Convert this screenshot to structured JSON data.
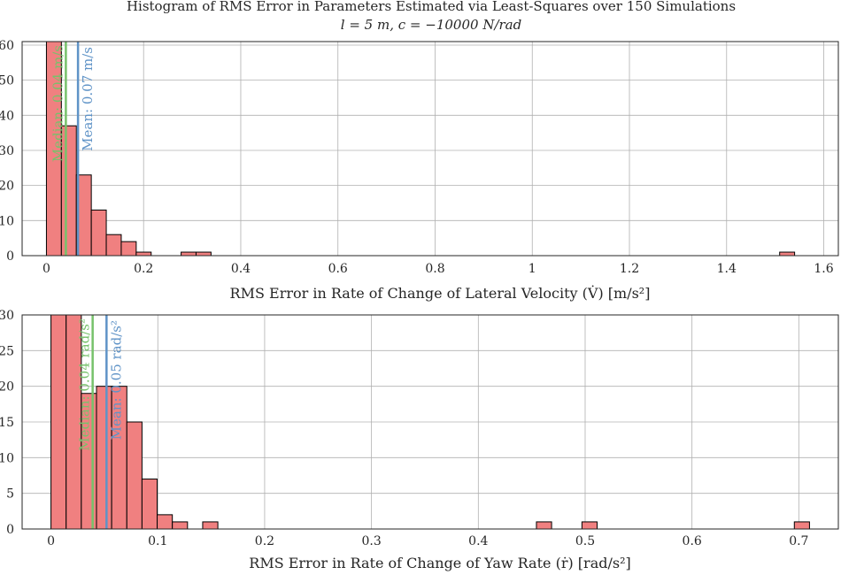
{
  "title_line1": "Histogram of RMS Error in Parameters Estimated via Least-Squares over 150 Simulations",
  "title_line2": "l = 5 m, c = −10000 N/rad",
  "colors": {
    "bar": "#f08080",
    "median": "#77c26b",
    "mean": "#5f93c7",
    "grid": "#b0b0b0"
  },
  "chart_data": [
    {
      "type": "bar",
      "xlabel": "RMS Error in Rate of Change of Lateral Velocity (V̇) [m/s²]",
      "xlim": [
        -0.05,
        1.63
      ],
      "ylim": [
        0,
        61
      ],
      "xticks": [
        0,
        0.2,
        0.4,
        0.6,
        0.8,
        1,
        1.2,
        1.4,
        1.6
      ],
      "xtick_labels": [
        "0",
        "0.2",
        "0.4",
        "0.6",
        "0.8",
        "1",
        "1.2",
        "1.4",
        "1.6"
      ],
      "yticks": [
        0,
        10,
        20,
        30,
        40,
        50,
        60
      ],
      "ytick_labels": [
        "0",
        "10",
        "20",
        "30",
        "40",
        "50",
        "60"
      ],
      "bin_width": 0.0308,
      "bin_starts": [
        0,
        0.0308,
        0.0616,
        0.0924,
        0.1232,
        0.154,
        0.1848,
        0.2772,
        0.308,
        1.5092
      ],
      "counts": [
        61,
        37,
        23,
        13,
        6,
        4,
        1,
        1,
        1,
        1
      ],
      "median": {
        "value": 0.04,
        "label": "Median: 0.04 m/s"
      },
      "mean": {
        "value": 0.065,
        "label": "Mean: 0.07 m/s"
      }
    },
    {
      "type": "bar",
      "xlabel": "RMS Error in Rate of Change of Yaw Rate (ṙ) [rad/s²]",
      "xlim": [
        -0.027,
        0.737
      ],
      "ylim": [
        0,
        30
      ],
      "xticks": [
        0,
        0.1,
        0.2,
        0.3,
        0.4,
        0.5,
        0.6,
        0.7
      ],
      "xtick_labels": [
        "0",
        "0.1",
        "0.2",
        "0.3",
        "0.4",
        "0.5",
        "0.6",
        "0.7"
      ],
      "yticks": [
        0,
        5,
        10,
        15,
        20,
        25,
        30
      ],
      "ytick_labels": [
        "0",
        "5",
        "10",
        "15",
        "20",
        "25",
        "30"
      ],
      "bin_width": 0.0142,
      "bin_starts": [
        0,
        0.0142,
        0.0284,
        0.0426,
        0.0568,
        0.071,
        0.0852,
        0.0994,
        0.1136,
        0.142,
        0.4544,
        0.497,
        0.6958
      ],
      "counts": [
        30,
        30,
        19,
        20,
        20,
        15,
        7,
        2,
        1,
        1,
        1,
        1,
        1
      ],
      "median": {
        "value": 0.039,
        "label": "Median: 0.04 rad/s²"
      },
      "mean": {
        "value": 0.052,
        "label": "Mean: 0.05 rad/s²"
      }
    }
  ]
}
